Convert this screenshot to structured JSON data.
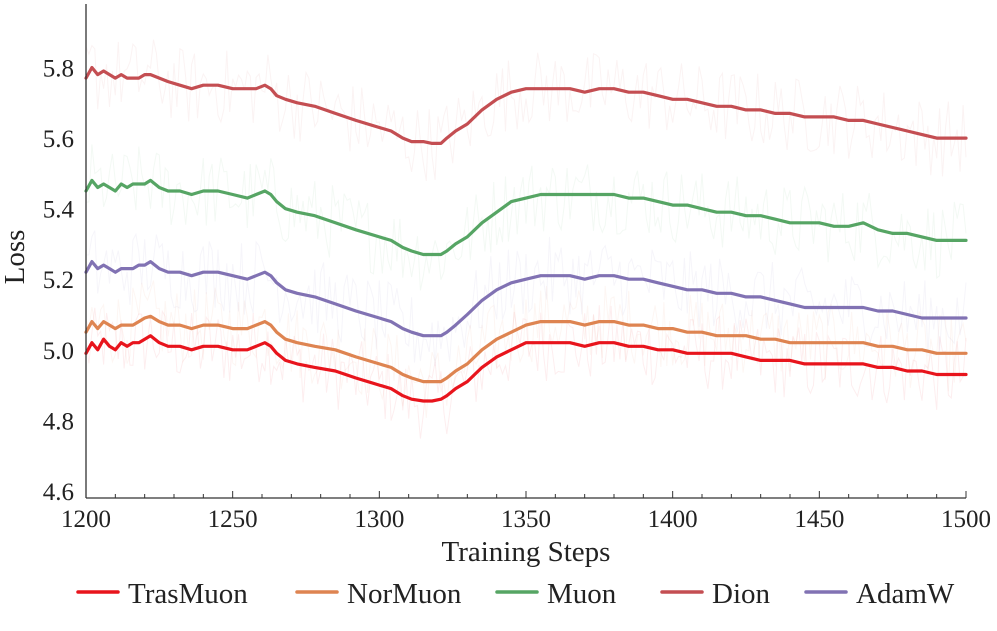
{
  "chart_data": {
    "type": "line",
    "xlabel": "Training Steps",
    "ylabel": "Loss",
    "xlim": [
      1200,
      1500
    ],
    "ylim": [
      4.58,
      5.98
    ],
    "xticks": [
      1200,
      1250,
      1300,
      1350,
      1400,
      1450,
      1500
    ],
    "xtick_labels": [
      "1200",
      "1250",
      "1300",
      "1350",
      "1400",
      "1450",
      "1500"
    ],
    "yticks": [
      4.6,
      4.8,
      5.0,
      5.2,
      5.4,
      5.6,
      5.8
    ],
    "ytick_labels": [
      "4.6",
      "4.8",
      "5.0",
      "5.2",
      "5.4",
      "5.6",
      "5.8"
    ],
    "grid": false,
    "legend_position": "bottom",
    "series": [
      {
        "name": "TrasMuon",
        "color": "#e8141c",
        "x": [
          1200,
          1202,
          1204,
          1206,
          1208,
          1210,
          1212,
          1214,
          1216,
          1218,
          1220,
          1222,
          1225,
          1228,
          1232,
          1236,
          1240,
          1245,
          1250,
          1255,
          1258,
          1261,
          1263,
          1265,
          1268,
          1272,
          1278,
          1285,
          1292,
          1300,
          1304,
          1308,
          1311,
          1315,
          1318,
          1321,
          1323,
          1326,
          1330,
          1335,
          1340,
          1345,
          1350,
          1355,
          1360,
          1365,
          1370,
          1375,
          1380,
          1385,
          1390,
          1395,
          1400,
          1405,
          1410,
          1415,
          1420,
          1425,
          1430,
          1435,
          1440,
          1445,
          1450,
          1455,
          1460,
          1465,
          1470,
          1475,
          1480,
          1485,
          1490,
          1495,
          1500
        ],
        "y": [
          4.99,
          5.02,
          5.0,
          5.03,
          5.01,
          5.0,
          5.02,
          5.01,
          5.02,
          5.02,
          5.03,
          5.04,
          5.02,
          5.01,
          5.01,
          5.0,
          5.01,
          5.01,
          5.0,
          5.0,
          5.01,
          5.02,
          5.01,
          4.99,
          4.97,
          4.96,
          4.95,
          4.94,
          4.92,
          4.9,
          4.89,
          4.87,
          4.86,
          4.855,
          4.855,
          4.86,
          4.87,
          4.89,
          4.91,
          4.95,
          4.98,
          5.0,
          5.02,
          5.02,
          5.02,
          5.02,
          5.01,
          5.02,
          5.02,
          5.01,
          5.01,
          5.0,
          5.0,
          4.99,
          4.99,
          4.99,
          4.99,
          4.98,
          4.97,
          4.97,
          4.97,
          4.96,
          4.96,
          4.96,
          4.96,
          4.96,
          4.95,
          4.95,
          4.94,
          4.94,
          4.93,
          4.93,
          4.93
        ]
      },
      {
        "name": "NorMuon",
        "color": "#de8451",
        "x": [
          1200,
          1202,
          1204,
          1206,
          1208,
          1210,
          1212,
          1214,
          1216,
          1218,
          1220,
          1222,
          1225,
          1228,
          1232,
          1236,
          1240,
          1245,
          1250,
          1255,
          1258,
          1261,
          1263,
          1265,
          1268,
          1272,
          1278,
          1285,
          1292,
          1300,
          1304,
          1308,
          1311,
          1315,
          1318,
          1321,
          1323,
          1326,
          1330,
          1335,
          1340,
          1345,
          1350,
          1355,
          1360,
          1365,
          1370,
          1375,
          1380,
          1385,
          1390,
          1395,
          1400,
          1405,
          1410,
          1415,
          1420,
          1425,
          1430,
          1435,
          1440,
          1445,
          1450,
          1455,
          1460,
          1465,
          1470,
          1475,
          1480,
          1485,
          1490,
          1495,
          1500
        ],
        "y": [
          5.05,
          5.08,
          5.06,
          5.08,
          5.07,
          5.06,
          5.07,
          5.07,
          5.07,
          5.08,
          5.09,
          5.095,
          5.08,
          5.07,
          5.07,
          5.06,
          5.07,
          5.07,
          5.06,
          5.06,
          5.07,
          5.08,
          5.07,
          5.05,
          5.03,
          5.02,
          5.01,
          5.0,
          4.98,
          4.96,
          4.95,
          4.93,
          4.92,
          4.91,
          4.91,
          4.91,
          4.92,
          4.94,
          4.96,
          5.0,
          5.03,
          5.05,
          5.07,
          5.08,
          5.08,
          5.08,
          5.07,
          5.08,
          5.08,
          5.07,
          5.07,
          5.06,
          5.06,
          5.05,
          5.05,
          5.04,
          5.04,
          5.04,
          5.03,
          5.03,
          5.02,
          5.02,
          5.02,
          5.02,
          5.02,
          5.02,
          5.01,
          5.01,
          5.0,
          5.0,
          4.99,
          4.99,
          4.99
        ]
      },
      {
        "name": "Muon",
        "color": "#56a564",
        "x": [
          1200,
          1202,
          1204,
          1206,
          1208,
          1210,
          1212,
          1214,
          1216,
          1218,
          1220,
          1222,
          1225,
          1228,
          1232,
          1236,
          1240,
          1245,
          1250,
          1255,
          1258,
          1261,
          1263,
          1265,
          1268,
          1272,
          1278,
          1285,
          1292,
          1300,
          1304,
          1308,
          1311,
          1315,
          1318,
          1321,
          1323,
          1326,
          1330,
          1335,
          1340,
          1345,
          1350,
          1355,
          1360,
          1365,
          1370,
          1375,
          1380,
          1385,
          1390,
          1395,
          1400,
          1405,
          1410,
          1415,
          1420,
          1425,
          1430,
          1435,
          1440,
          1445,
          1450,
          1455,
          1460,
          1465,
          1470,
          1475,
          1480,
          1485,
          1490,
          1495,
          1500
        ],
        "y": [
          5.45,
          5.48,
          5.46,
          5.47,
          5.46,
          5.45,
          5.47,
          5.46,
          5.47,
          5.47,
          5.47,
          5.48,
          5.46,
          5.45,
          5.45,
          5.44,
          5.45,
          5.45,
          5.44,
          5.43,
          5.44,
          5.45,
          5.44,
          5.42,
          5.4,
          5.39,
          5.38,
          5.36,
          5.34,
          5.32,
          5.31,
          5.29,
          5.28,
          5.27,
          5.27,
          5.27,
          5.28,
          5.3,
          5.32,
          5.36,
          5.39,
          5.42,
          5.43,
          5.44,
          5.44,
          5.44,
          5.44,
          5.44,
          5.44,
          5.43,
          5.43,
          5.42,
          5.41,
          5.41,
          5.4,
          5.39,
          5.39,
          5.38,
          5.38,
          5.37,
          5.36,
          5.36,
          5.36,
          5.35,
          5.35,
          5.36,
          5.34,
          5.33,
          5.33,
          5.32,
          5.31,
          5.31,
          5.31
        ]
      },
      {
        "name": "Dion",
        "color": "#c44e52",
        "x": [
          1200,
          1202,
          1204,
          1206,
          1208,
          1210,
          1212,
          1214,
          1216,
          1218,
          1220,
          1222,
          1225,
          1228,
          1232,
          1236,
          1240,
          1245,
          1250,
          1255,
          1258,
          1261,
          1263,
          1265,
          1268,
          1272,
          1278,
          1285,
          1292,
          1300,
          1304,
          1308,
          1311,
          1315,
          1318,
          1321,
          1323,
          1326,
          1330,
          1335,
          1340,
          1345,
          1350,
          1355,
          1360,
          1365,
          1370,
          1375,
          1380,
          1385,
          1390,
          1395,
          1400,
          1405,
          1410,
          1415,
          1420,
          1425,
          1430,
          1435,
          1440,
          1445,
          1450,
          1455,
          1460,
          1465,
          1470,
          1475,
          1480,
          1485,
          1490,
          1495,
          1500
        ],
        "y": [
          5.77,
          5.8,
          5.78,
          5.79,
          5.78,
          5.77,
          5.78,
          5.77,
          5.77,
          5.77,
          5.78,
          5.78,
          5.77,
          5.76,
          5.75,
          5.74,
          5.75,
          5.75,
          5.74,
          5.74,
          5.74,
          5.75,
          5.74,
          5.72,
          5.71,
          5.7,
          5.69,
          5.67,
          5.65,
          5.63,
          5.62,
          5.6,
          5.59,
          5.59,
          5.585,
          5.585,
          5.6,
          5.62,
          5.64,
          5.68,
          5.71,
          5.73,
          5.74,
          5.74,
          5.74,
          5.74,
          5.73,
          5.74,
          5.74,
          5.73,
          5.73,
          5.72,
          5.71,
          5.71,
          5.7,
          5.69,
          5.69,
          5.68,
          5.68,
          5.67,
          5.67,
          5.66,
          5.66,
          5.66,
          5.65,
          5.65,
          5.64,
          5.63,
          5.62,
          5.61,
          5.6,
          5.6,
          5.6
        ]
      },
      {
        "name": "AdamW",
        "color": "#8172b3",
        "x": [
          1200,
          1202,
          1204,
          1206,
          1208,
          1210,
          1212,
          1214,
          1216,
          1218,
          1220,
          1222,
          1225,
          1228,
          1232,
          1236,
          1240,
          1245,
          1250,
          1255,
          1258,
          1261,
          1263,
          1265,
          1268,
          1272,
          1278,
          1285,
          1292,
          1300,
          1304,
          1308,
          1311,
          1315,
          1318,
          1321,
          1323,
          1326,
          1330,
          1335,
          1340,
          1345,
          1350,
          1355,
          1360,
          1365,
          1370,
          1375,
          1380,
          1385,
          1390,
          1395,
          1400,
          1405,
          1410,
          1415,
          1420,
          1425,
          1430,
          1435,
          1440,
          1445,
          1450,
          1455,
          1460,
          1465,
          1470,
          1475,
          1480,
          1485,
          1490,
          1495,
          1500
        ],
        "y": [
          5.22,
          5.25,
          5.23,
          5.24,
          5.23,
          5.22,
          5.23,
          5.23,
          5.23,
          5.24,
          5.24,
          5.25,
          5.23,
          5.22,
          5.22,
          5.21,
          5.22,
          5.22,
          5.21,
          5.2,
          5.21,
          5.22,
          5.21,
          5.19,
          5.17,
          5.16,
          5.15,
          5.13,
          5.11,
          5.09,
          5.08,
          5.06,
          5.05,
          5.04,
          5.04,
          5.04,
          5.05,
          5.07,
          5.1,
          5.14,
          5.17,
          5.19,
          5.2,
          5.21,
          5.21,
          5.21,
          5.2,
          5.21,
          5.21,
          5.2,
          5.2,
          5.19,
          5.18,
          5.17,
          5.17,
          5.16,
          5.16,
          5.15,
          5.15,
          5.14,
          5.13,
          5.12,
          5.12,
          5.12,
          5.12,
          5.12,
          5.11,
          5.11,
          5.1,
          5.09,
          5.09,
          5.09,
          5.09
        ]
      }
    ]
  }
}
